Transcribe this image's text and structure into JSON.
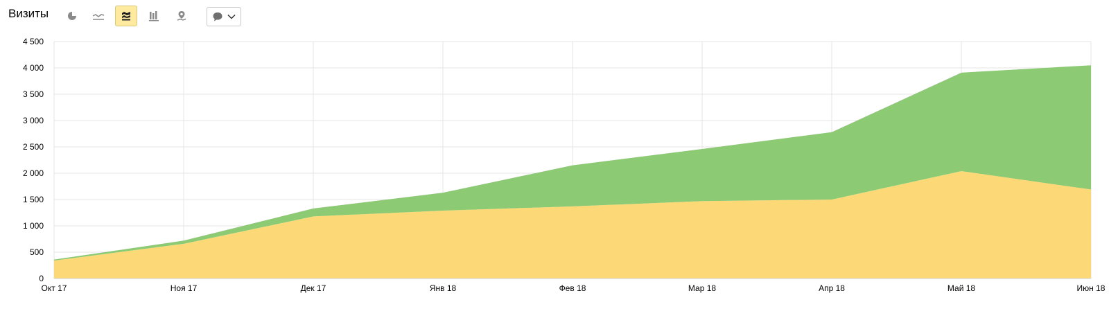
{
  "header": {
    "title": "Визиты",
    "icons": [
      "pie-chart-icon",
      "line-chart-icon",
      "stacked-area-icon",
      "bar-chart-icon",
      "map-icon",
      "comment-icon",
      "chevron-down-icon"
    ],
    "active_view": "stacked-area-icon"
  },
  "colors": {
    "series_bottom": "#fdd876",
    "series_top": "#8cca73",
    "grid": "#e6e6e6",
    "active_button": "#ffeba0"
  },
  "chart_data": {
    "type": "area",
    "stacked": true,
    "categories": [
      "Окт 17",
      "Ноя 17",
      "Дек 17",
      "Янв 18",
      "Фев 18",
      "Мар 18",
      "Апр 18",
      "Май 18",
      "Июн 18"
    ],
    "series": [
      {
        "values": [
          340,
          660,
          1180,
          1290,
          1370,
          1470,
          1500,
          2040,
          1690
        ]
      },
      {
        "values": [
          20,
          60,
          150,
          340,
          780,
          990,
          1280,
          1870,
          2360
        ]
      }
    ],
    "y_ticks": [
      "0",
      "500",
      "1 000",
      "1 500",
      "2 000",
      "2 500",
      "3 000",
      "3 500",
      "4 000",
      "4 500"
    ],
    "ylim": [
      0,
      4500
    ],
    "grid": true,
    "legend": "none"
  }
}
